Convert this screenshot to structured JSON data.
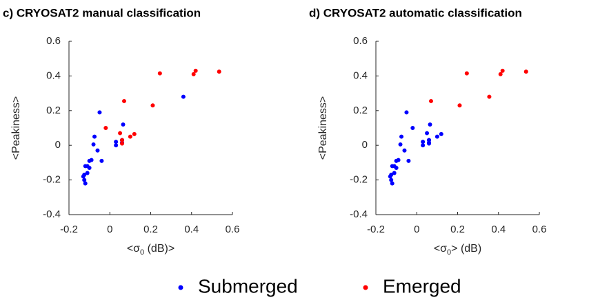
{
  "chart_data": [
    {
      "type": "scatter",
      "title": "c) CRYOSAT2 manual classification",
      "x_label": [
        "<σ",
        "0",
        " (dB)>"
      ],
      "y_label": "<Peakiness>",
      "xlim": [
        -0.2,
        0.6
      ],
      "ylim": [
        -0.4,
        0.6
      ],
      "xticks": [
        -0.2,
        0,
        0.2,
        0.4,
        0.6
      ],
      "yticks": [
        -0.4,
        -0.2,
        0,
        0.2,
        0.4,
        0.6
      ],
      "series": [
        {
          "name": "Submerged",
          "color": "#0000ff",
          "x": [
            -0.05,
            -0.075,
            -0.08,
            -0.06,
            -0.04,
            -0.09,
            -0.1,
            -0.1,
            -0.11,
            -0.12,
            -0.13,
            -0.125,
            -0.12,
            -0.125,
            -0.11,
            0.03,
            0.03,
            0.065,
            0.06,
            0.06,
            0.36
          ],
          "values": [
            0.19,
            0.05,
            0.005,
            -0.03,
            -0.09,
            -0.085,
            -0.13,
            -0.09,
            -0.12,
            -0.12,
            -0.18,
            -0.2,
            -0.22,
            -0.17,
            -0.16,
            0.02,
            0.0,
            0.12,
            0.03,
            0.015,
            0.28
          ]
        },
        {
          "name": "Emerged",
          "color": "#ff0000",
          "x": [
            -0.02,
            0.05,
            0.06,
            0.06,
            0.07,
            0.1,
            0.12,
            0.21,
            0.245,
            0.41,
            0.42,
            0.535
          ],
          "values": [
            0.1,
            0.07,
            0.03,
            0.01,
            0.255,
            0.05,
            0.065,
            0.23,
            0.415,
            0.41,
            0.43,
            0.425
          ]
        }
      ]
    },
    {
      "type": "scatter",
      "title": "d) CRYOSAT2 automatic classification",
      "x_label": [
        "<σ",
        "0",
        "> (dB)"
      ],
      "y_label": "<Peakiness>",
      "xlim": [
        -0.2,
        0.6
      ],
      "ylim": [
        -0.4,
        0.6
      ],
      "xticks": [
        -0.2,
        0,
        0.2,
        0.4,
        0.6
      ],
      "yticks": [
        -0.4,
        -0.2,
        0,
        0.2,
        0.4,
        0.6
      ],
      "series": [
        {
          "color": "#0000ff",
          "x": [
            -0.05,
            -0.075,
            -0.08,
            -0.06,
            -0.04,
            -0.09,
            -0.1,
            -0.1,
            -0.11,
            -0.12,
            -0.13,
            -0.125,
            -0.12,
            -0.125,
            -0.11,
            0.03,
            0.03,
            0.065,
            0.06,
            0.06,
            -0.02,
            0.05,
            0.06,
            0.06,
            0.1,
            0.12
          ],
          "values": [
            0.19,
            0.05,
            0.005,
            -0.03,
            -0.09,
            -0.085,
            -0.13,
            -0.09,
            -0.12,
            -0.12,
            -0.18,
            -0.2,
            -0.22,
            -0.17,
            -0.16,
            0.02,
            0.0,
            0.12,
            0.03,
            0.015,
            0.1,
            0.07,
            0.03,
            0.01,
            0.05,
            0.065
          ]
        },
        {
          "color": "#ff0000",
          "x": [
            0.07,
            0.21,
            0.245,
            0.355,
            0.41,
            0.42,
            0.535
          ],
          "values": [
            0.255,
            0.23,
            0.415,
            0.28,
            0.41,
            0.43,
            0.425
          ]
        }
      ]
    }
  ]
}
